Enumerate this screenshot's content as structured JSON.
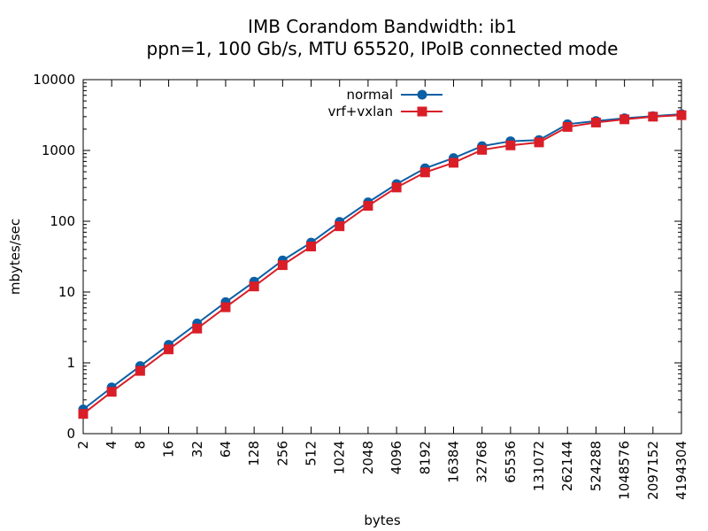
{
  "chart_data": {
    "type": "line",
    "title": "IMB Corandom Bandwidth: ib1",
    "subtitle": "ppn=1, 100 Gb/s, MTU 65520, IPoIB connected mode",
    "xlabel": "bytes",
    "ylabel": "mbytes/sec",
    "x_scale": "log2",
    "y_scale": "log10",
    "ylim": [
      0.1,
      10000
    ],
    "x": [
      2,
      4,
      8,
      16,
      32,
      64,
      128,
      256,
      512,
      1024,
      2048,
      4096,
      8192,
      16384,
      32768,
      65536,
      131072,
      262144,
      524288,
      1048576,
      2097152,
      4194304
    ],
    "x_tick_labels": [
      "2",
      "4",
      "8",
      "16",
      "32",
      "64",
      "128",
      "256",
      "512",
      "1024",
      "2048",
      "4096",
      "8192",
      "16384",
      "32768",
      "65536",
      "131072",
      "262144",
      "524288",
      "1048576",
      "2097152",
      "4194304"
    ],
    "y_ticks": [
      0.1,
      1,
      10,
      100,
      1000,
      10000
    ],
    "y_tick_labels": [
      "0",
      "1",
      "10",
      "100",
      "1000",
      "10000"
    ],
    "legend_position": "top-center",
    "grid": false,
    "series": [
      {
        "name": "normal",
        "color": "#0b5fa5",
        "marker": "circle",
        "values": [
          0.22,
          0.45,
          0.9,
          1.8,
          3.6,
          7.2,
          14,
          28,
          50,
          98,
          185,
          335,
          560,
          780,
          1150,
          1350,
          1400,
          2350,
          2600,
          2850,
          3050,
          3250
        ]
      },
      {
        "name": "vrf+vxlan",
        "color": "#d91e27",
        "marker": "square",
        "values": [
          0.19,
          0.39,
          0.77,
          1.55,
          3.05,
          6.1,
          12,
          24,
          44,
          85,
          165,
          300,
          490,
          670,
          1020,
          1180,
          1300,
          2150,
          2480,
          2750,
          3000,
          3150
        ]
      }
    ]
  }
}
